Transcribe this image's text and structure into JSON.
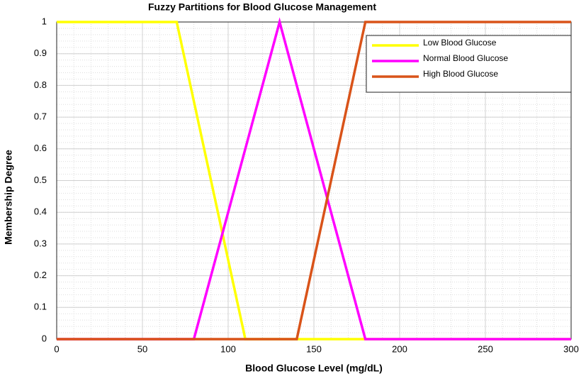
{
  "chart_data": {
    "type": "line",
    "title": "Fuzzy Partitions for Blood Glucose Management",
    "x_label": "Blood Glucose Level (mg/dL)",
    "y_label": "Membership Degree",
    "x": [
      0,
      70,
      80,
      110,
      130,
      140,
      180,
      300
    ],
    "series": [
      {
        "name": "Low Blood Glucose",
        "color": "#ffff00",
        "values": [
          1,
          1,
          0.75,
          0,
          0,
          0,
          0,
          0
        ]
      },
      {
        "name": "Normal Blood Glucose",
        "color": "#ff00ff",
        "values": [
          0,
          0,
          0,
          0.6,
          1,
          0.8,
          0,
          0
        ]
      },
      {
        "name": "High Blood Glucose",
        "color": "#d95319",
        "values": [
          0,
          0,
          0,
          0,
          0,
          0,
          1,
          1
        ]
      }
    ],
    "xlim": [
      0,
      300
    ],
    "xticks": [
      0,
      50,
      100,
      150,
      200,
      250,
      300
    ],
    "ylim": [
      0,
      1
    ],
    "yticks": [
      0,
      0.1,
      0.2,
      0.3,
      0.4,
      0.5,
      0.6,
      0.7,
      0.8,
      0.9,
      1
    ],
    "grid": true,
    "minor_grid": true,
    "legend": "upper right"
  }
}
